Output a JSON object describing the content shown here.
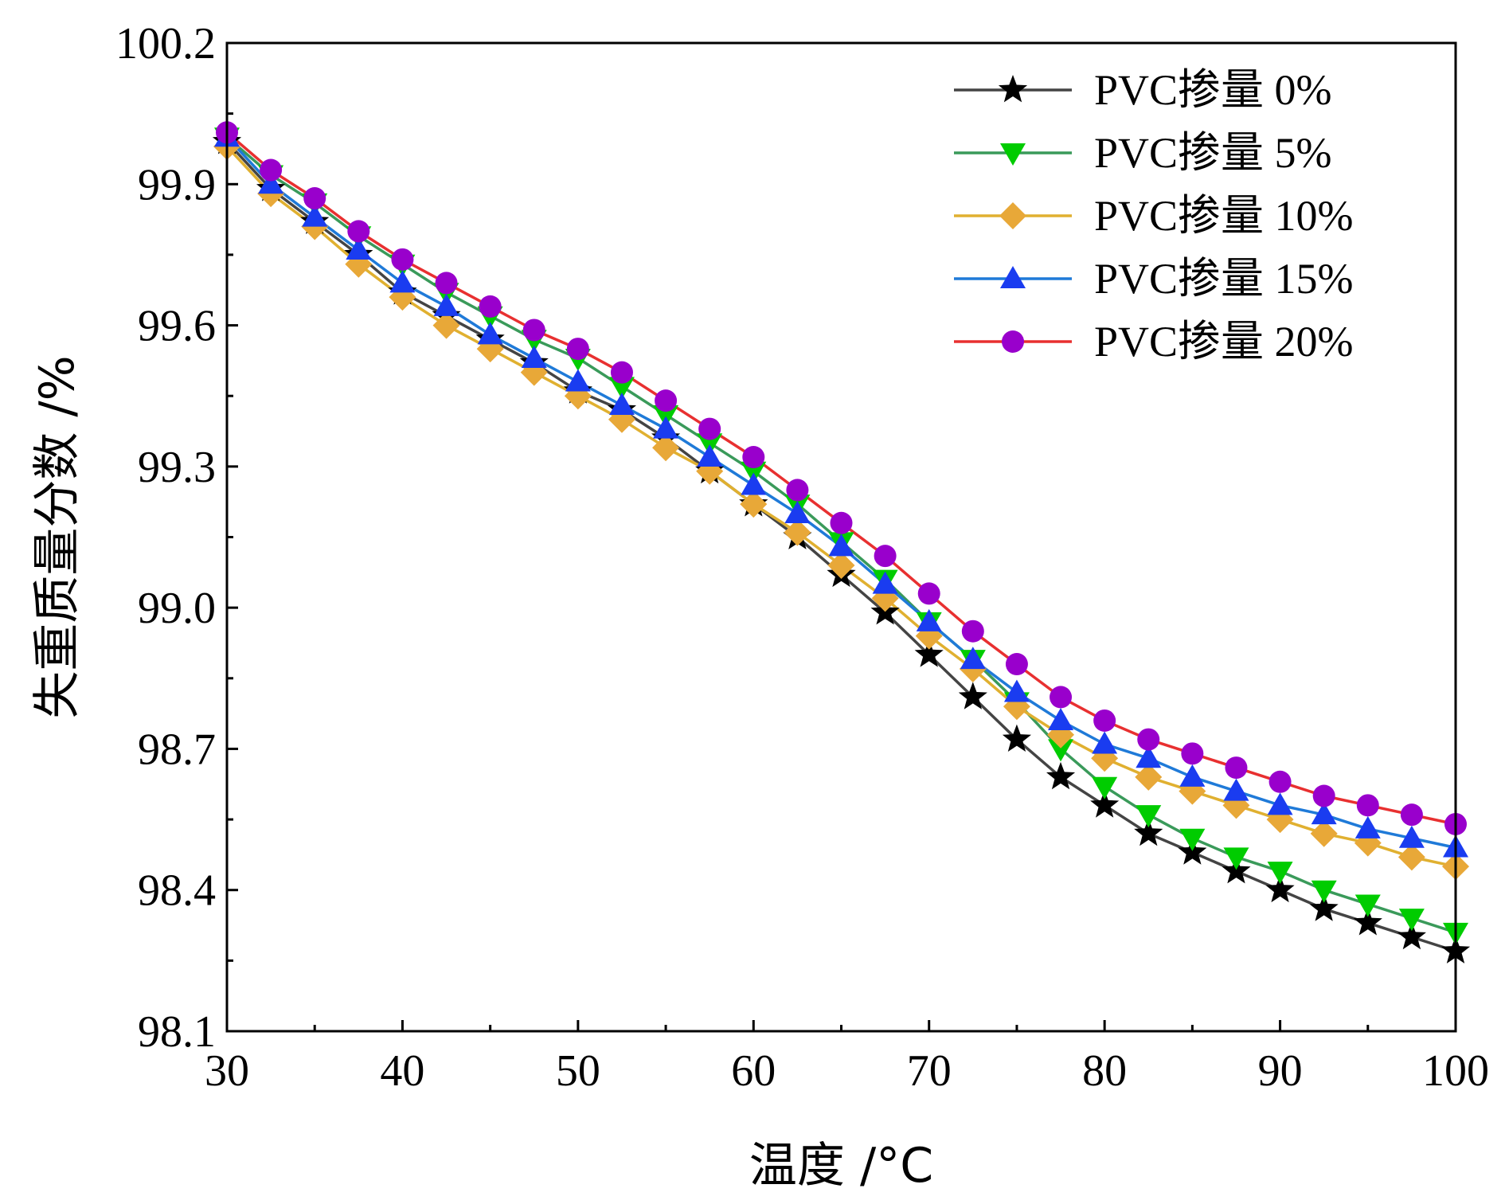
{
  "chart_data": {
    "type": "line",
    "title": "",
    "xlabel": "温度  /°C",
    "ylabel": "失重质量分数 /%",
    "xlim": [
      30,
      100
    ],
    "ylim": [
      98.1,
      100.2
    ],
    "xticks": [
      30,
      40,
      50,
      60,
      70,
      80,
      90,
      100
    ],
    "yticks": [
      98.1,
      98.4,
      98.7,
      99.0,
      99.3,
      99.6,
      99.9,
      100.2
    ],
    "ytick_labels": [
      "98.1",
      "98.4",
      "98.7",
      "99.0",
      "99.3",
      "99.6",
      "99.9",
      "100.2"
    ],
    "grid": false,
    "legend_position": "top-right",
    "x": [
      30,
      32.5,
      35,
      37.5,
      40,
      42.5,
      45,
      47.5,
      50,
      52.5,
      55,
      57.5,
      60,
      62.5,
      65,
      67.5,
      70,
      72.5,
      75,
      77.5,
      80,
      82.5,
      85,
      87.5,
      90,
      92.5,
      95,
      97.5,
      100
    ],
    "series": [
      {
        "name": "PVC掺量 0%",
        "color": "#000000",
        "line_color": "#444444",
        "marker": "star",
        "values": [
          99.99,
          99.89,
          99.82,
          99.75,
          99.67,
          99.62,
          99.57,
          99.52,
          99.46,
          99.42,
          99.36,
          99.29,
          99.22,
          99.15,
          99.07,
          98.99,
          98.9,
          98.81,
          98.72,
          98.64,
          98.58,
          98.52,
          98.48,
          98.44,
          98.4,
          98.36,
          98.33,
          98.3,
          98.27
        ]
      },
      {
        "name": "PVC掺量 5%",
        "color": "#00cc00",
        "line_color": "#3a9a5a",
        "marker": "triangle-down",
        "values": [
          100.0,
          99.92,
          99.86,
          99.79,
          99.73,
          99.67,
          99.62,
          99.57,
          99.53,
          99.47,
          99.41,
          99.35,
          99.29,
          99.22,
          99.14,
          99.06,
          98.97,
          98.89,
          98.8,
          98.7,
          98.62,
          98.56,
          98.51,
          98.47,
          98.44,
          98.4,
          98.37,
          98.34,
          98.31
        ]
      },
      {
        "name": "PVC掺量 10%",
        "color": "#e8a838",
        "line_color": "#e0b030",
        "marker": "diamond",
        "values": [
          99.98,
          99.88,
          99.81,
          99.73,
          99.66,
          99.6,
          99.55,
          99.5,
          99.45,
          99.4,
          99.34,
          99.29,
          99.22,
          99.16,
          99.09,
          99.02,
          98.94,
          98.87,
          98.79,
          98.73,
          98.68,
          98.64,
          98.61,
          98.58,
          98.55,
          98.52,
          98.5,
          98.47,
          98.45
        ]
      },
      {
        "name": "PVC掺量 15%",
        "color": "#1a3cf0",
        "line_color": "#1f7ad8",
        "marker": "triangle-up",
        "values": [
          100.0,
          99.9,
          99.83,
          99.76,
          99.69,
          99.64,
          99.58,
          99.53,
          99.48,
          99.43,
          99.38,
          99.32,
          99.26,
          99.2,
          99.13,
          99.05,
          98.97,
          98.89,
          98.82,
          98.76,
          98.71,
          98.68,
          98.64,
          98.61,
          98.58,
          98.56,
          98.53,
          98.51,
          98.49
        ]
      },
      {
        "name": "PVC掺量 20%",
        "color": "#9900cc",
        "line_color": "#e83030",
        "marker": "circle",
        "values": [
          100.01,
          99.93,
          99.87,
          99.8,
          99.74,
          99.69,
          99.64,
          99.59,
          99.55,
          99.5,
          99.44,
          99.38,
          99.32,
          99.25,
          99.18,
          99.11,
          99.03,
          98.95,
          98.88,
          98.81,
          98.76,
          98.72,
          98.69,
          98.66,
          98.63,
          98.6,
          98.58,
          98.56,
          98.54
        ]
      }
    ]
  }
}
